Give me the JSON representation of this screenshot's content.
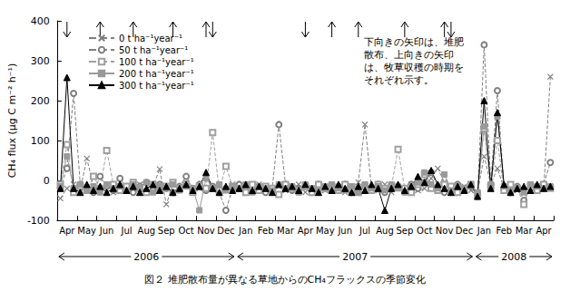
{
  "chart_data": {
    "type": "line",
    "title": "図２ 堆肥散布量が異なる草地からのCH₄フラックスの季節変化",
    "y_label": "CH₄ flux (μg C m⁻² h⁻¹)",
    "annotation": [
      "下向きの矢印は、堆肥",
      "散布、上向きの矢印",
      "は、牧草収穫の時期を",
      "それぞれ示す。"
    ],
    "years": [
      "2006",
      "2007",
      "2008"
    ],
    "arrows": {
      "down": [
        1,
        23,
        37,
        59
      ],
      "up": [
        6,
        11,
        17,
        22,
        41,
        45,
        52,
        58
      ]
    },
    "categories": [
      null,
      "Apr",
      null,
      null,
      "May",
      null,
      null,
      "Jun",
      null,
      null,
      "Jul",
      null,
      null,
      "Aug",
      null,
      null,
      "Sep",
      null,
      null,
      "Oct",
      null,
      null,
      "Nov",
      null,
      null,
      "Dec",
      null,
      null,
      "Jan",
      null,
      null,
      "Feb",
      null,
      null,
      "Mar",
      null,
      null,
      "Apr",
      null,
      null,
      "May",
      null,
      null,
      "Jun",
      null,
      null,
      "Jul",
      null,
      null,
      "Aug",
      null,
      null,
      "Sep",
      null,
      null,
      "Oct",
      null,
      null,
      "Nov",
      null,
      null,
      "Dec",
      null,
      null,
      "Jan",
      null,
      null,
      "Feb",
      null,
      null,
      "Mar",
      null,
      null,
      "Apr",
      null
    ],
    "series": [
      {
        "name": "0 t ha⁻¹year⁻¹",
        "color": "#808080",
        "marker": "x",
        "line_style": "dashed",
        "values": [
          -45,
          -20,
          -10,
          -25,
          55,
          -15,
          -20,
          -10,
          -30,
          -5,
          -20,
          -25,
          -10,
          -30,
          -15,
          28,
          -60,
          -10,
          -25,
          -5,
          -30,
          -20,
          10,
          -15,
          -30,
          -20,
          -10,
          -15,
          -20,
          -25,
          -10,
          -20,
          -30,
          -15,
          -25,
          -20,
          -10,
          -30,
          -20,
          -15,
          -25,
          -10,
          -20,
          -30,
          -15,
          -5,
          140,
          -20,
          -25,
          -10,
          -30,
          -15,
          -20,
          -10,
          -25,
          -20,
          5,
          30,
          -5,
          -30,
          -20,
          -15,
          -25,
          -30,
          60,
          -10,
          30,
          -20,
          -15,
          -25,
          -30,
          -10,
          -20,
          -20,
          260
        ]
      },
      {
        "name": "50 t ha⁻¹year⁻¹",
        "color": "#808080",
        "marker": "circle_open",
        "line_style": "dashed",
        "values": [
          -20,
          30,
          218,
          -10,
          -20,
          -30,
          10,
          -15,
          -25,
          5,
          -20,
          -30,
          -15,
          -5,
          -25,
          -10,
          -20,
          -30,
          -15,
          10,
          -20,
          -10,
          -25,
          -15,
          -30,
          -75,
          -20,
          -10,
          -25,
          -20,
          -15,
          -30,
          -20,
          140,
          -10,
          -25,
          -20,
          -15,
          -30,
          -10,
          -20,
          -25,
          -15,
          -10,
          -30,
          -20,
          -15,
          -25,
          -10,
          -30,
          -20,
          -15,
          -25,
          -10,
          -20,
          -5,
          20,
          -15,
          -30,
          -20,
          -10,
          -25,
          -15,
          -40,
          340,
          -10,
          225,
          -20,
          -30,
          -15,
          -50,
          -20,
          -25,
          -10,
          45
        ]
      },
      {
        "name": "100 t ha⁻¹year⁻¹",
        "color": "#a0a0a0",
        "marker": "square_open",
        "line_style": "dashed",
        "values": [
          -10,
          90,
          -30,
          -15,
          -25,
          10,
          -20,
          75,
          -10,
          -25,
          -15,
          -5,
          -20,
          -30,
          -10,
          -25,
          -15,
          -5,
          -20,
          -10,
          -30,
          -15,
          -20,
          120,
          -25,
          35,
          -15,
          -20,
          -30,
          -10,
          -25,
          -15,
          -20,
          -35,
          -10,
          -20,
          -25,
          -15,
          -30,
          -10,
          -20,
          -15,
          -25,
          -10,
          -20,
          -30,
          -15,
          -25,
          -10,
          -20,
          -15,
          78,
          -20,
          -30,
          -10,
          15,
          -20,
          -25,
          -10,
          -15,
          -30,
          -20,
          -10,
          -35,
          130,
          -15,
          100,
          -25,
          -10,
          -20,
          -60,
          -15,
          -25,
          -10,
          -20
        ]
      },
      {
        "name": "200 t ha⁻¹year⁻¹",
        "color": "#999999",
        "marker": "square",
        "line_style": "solid",
        "values": [
          -15,
          60,
          -20,
          -10,
          -25,
          -15,
          -30,
          -10,
          -20,
          -15,
          -25,
          -10,
          -20,
          -5,
          -30,
          -15,
          -20,
          -10,
          -25,
          -15,
          -20,
          -75,
          5,
          -20,
          -10,
          -25,
          -15,
          -20,
          -10,
          -30,
          -15,
          -20,
          -25,
          -10,
          -20,
          -15,
          -30,
          -10,
          -20,
          -25,
          -15,
          -10,
          -20,
          -25,
          -15,
          -30,
          -10,
          -20,
          -15,
          -25,
          -10,
          -20,
          -30,
          -15,
          -5,
          20,
          -10,
          -20,
          15,
          -25,
          -15,
          -20,
          -10,
          -30,
          135,
          -10,
          160,
          -15,
          -25,
          -20,
          -30,
          -10,
          -15,
          -20,
          -15
        ]
      },
      {
        "name": "300 t ha⁻¹year⁻¹",
        "color": "#000000",
        "marker": "triangle",
        "line_style": "solid",
        "values": [
          -20,
          258,
          -20,
          -30,
          -10,
          -25,
          -15,
          -30,
          -20,
          -10,
          -25,
          -15,
          -30,
          -20,
          -10,
          -25,
          -15,
          -30,
          -20,
          -10,
          -25,
          -15,
          20,
          -20,
          -30,
          -15,
          -25,
          -20,
          -10,
          -25,
          -15,
          -20,
          -30,
          -10,
          -20,
          -15,
          -25,
          -10,
          -20,
          -30,
          -15,
          -25,
          -10,
          -20,
          -30,
          -15,
          -25,
          -10,
          -20,
          -75,
          -20,
          -10,
          -25,
          -15,
          10,
          -5,
          25,
          -10,
          -20,
          -30,
          -15,
          -25,
          -10,
          -40,
          200,
          -20,
          170,
          -10,
          -30,
          -20,
          -15,
          -25,
          -10,
          -20,
          -15
        ]
      }
    ],
    "ylim": [
      -100,
      400
    ],
    "yticks": [
      -100,
      0,
      100,
      200,
      300,
      400
    ],
    "grid": false,
    "legend": "upper left"
  }
}
